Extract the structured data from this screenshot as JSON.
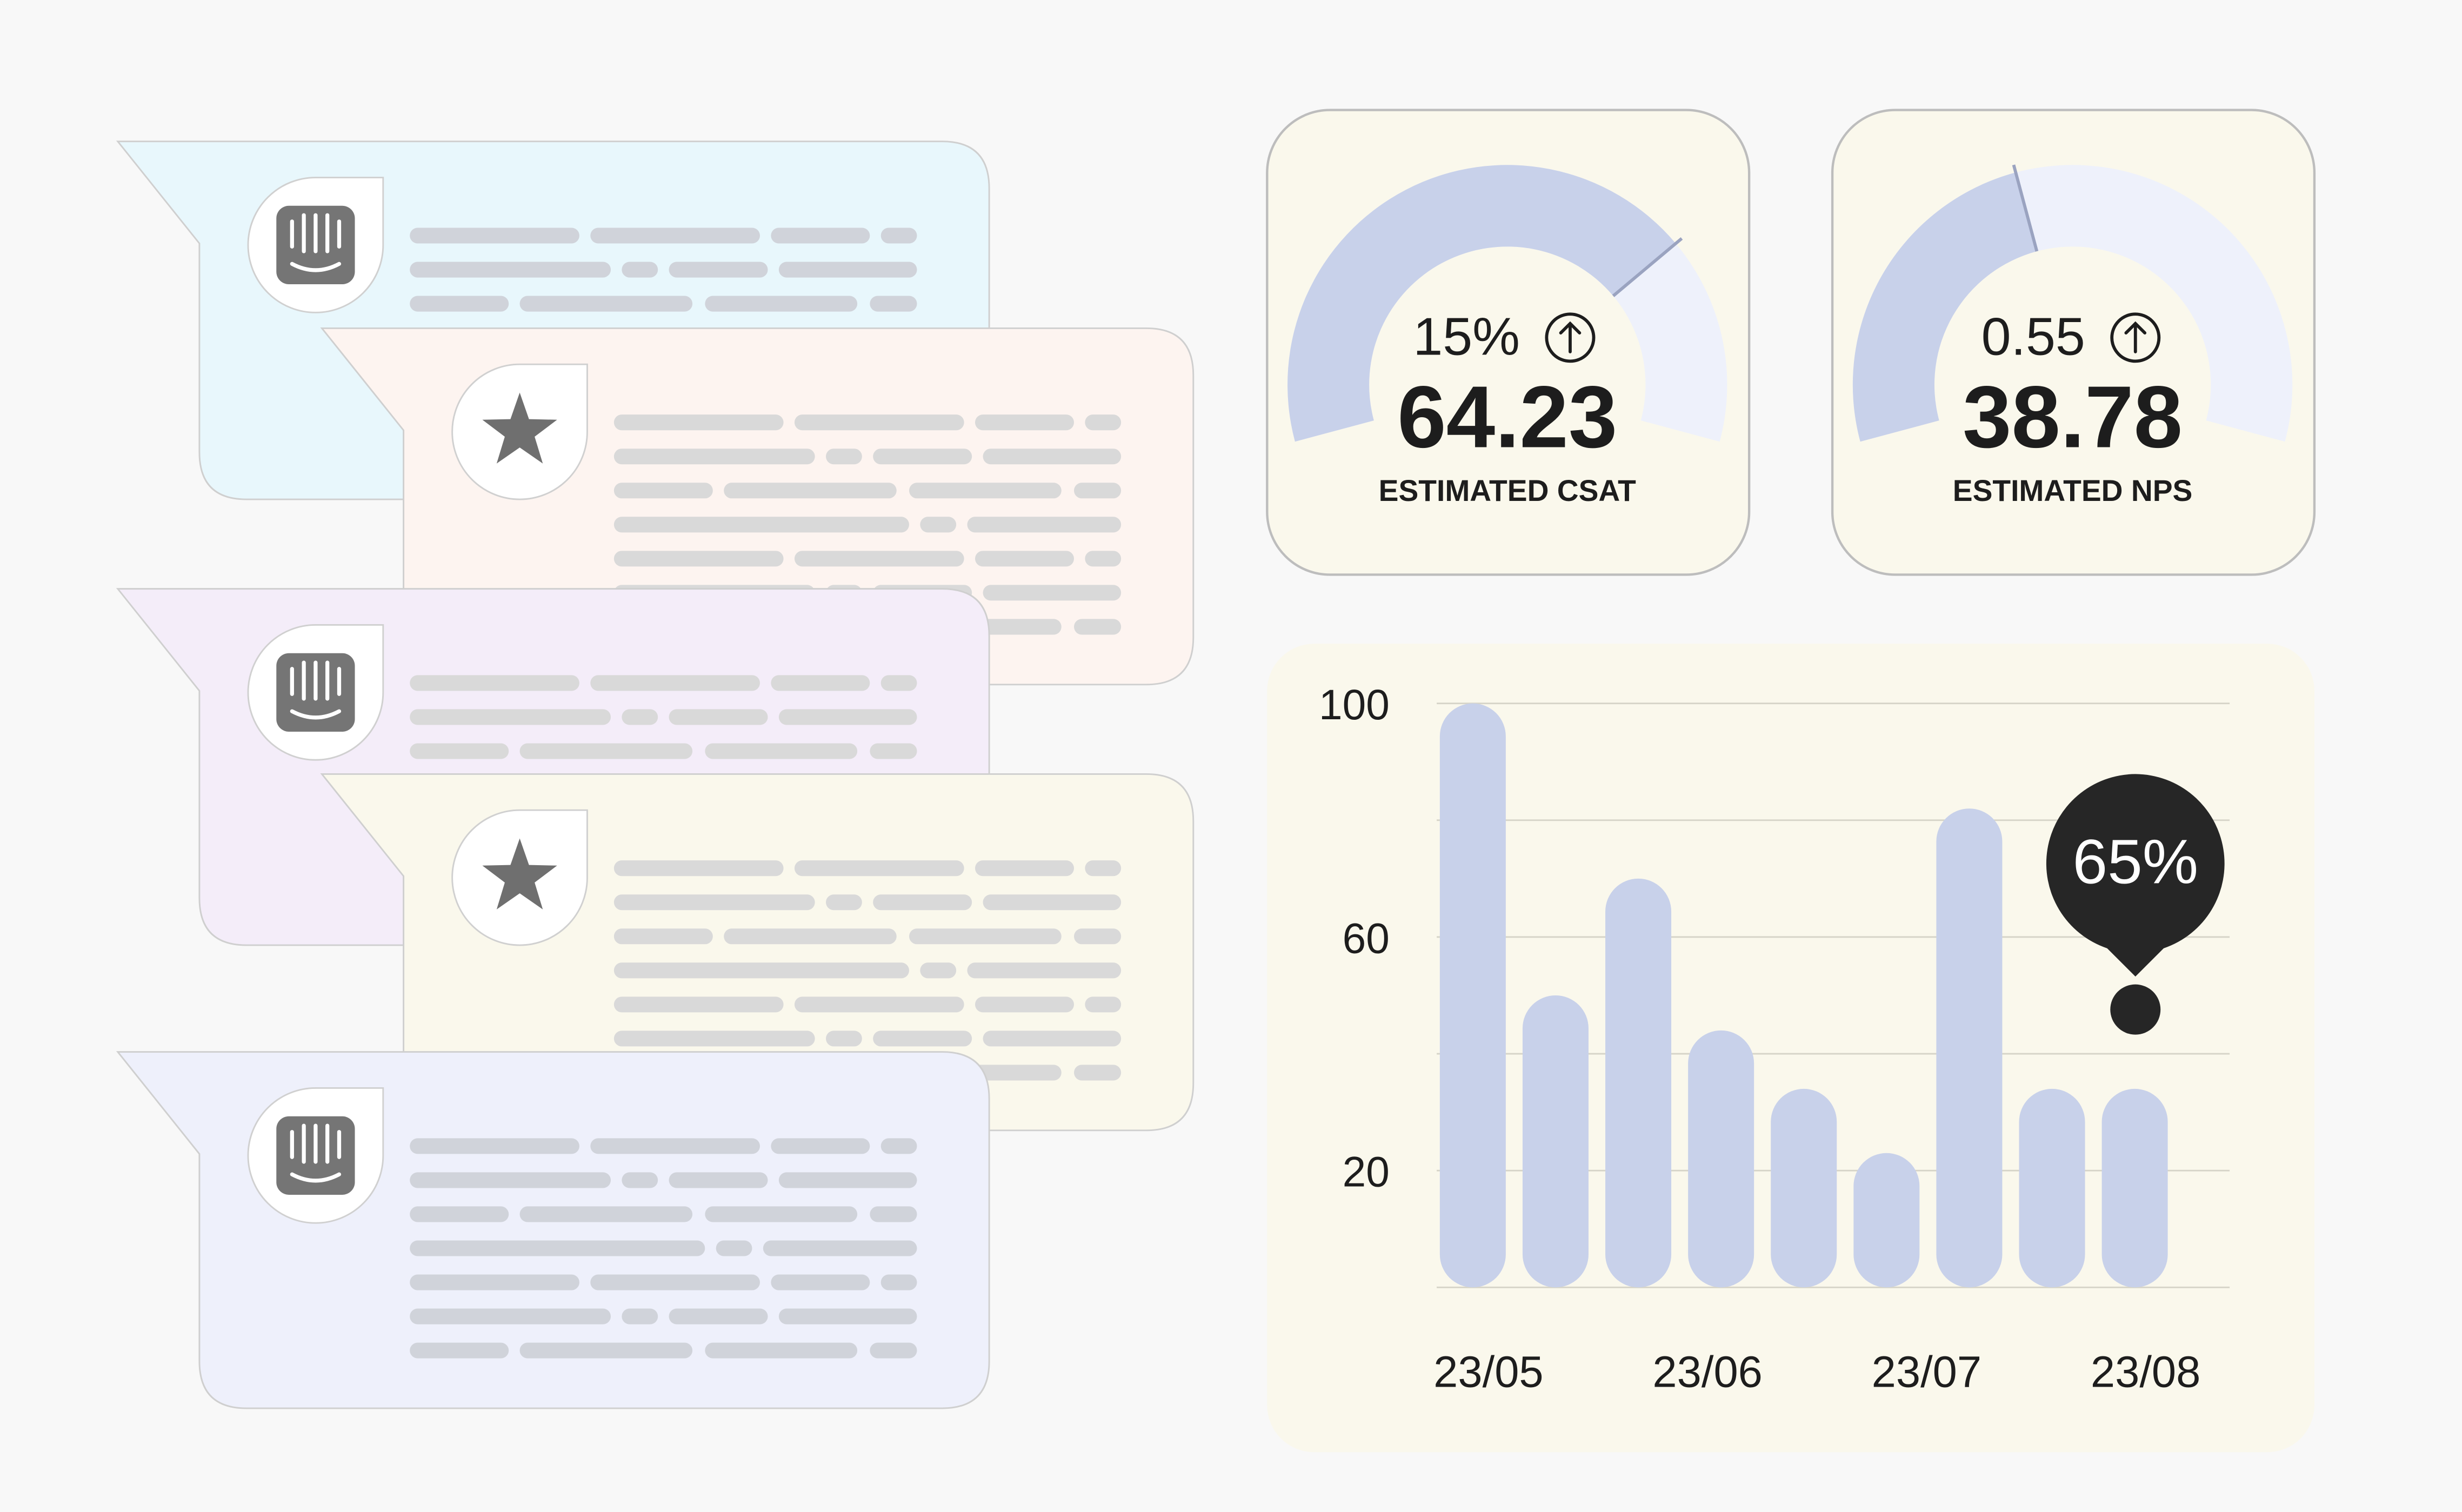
{
  "gauges": [
    {
      "change": "15%",
      "value": "64.23",
      "label": "ESTIMATED CSAT"
    },
    {
      "change": "0.55",
      "value": "38.78",
      "label": "ESTIMATED NPS"
    }
  ],
  "chart_data": {
    "type": "bar",
    "values": [
      100,
      50,
      70,
      44,
      34,
      23,
      82,
      34,
      34
    ],
    "color": "#c8d1ea",
    "ylim": [
      0,
      100
    ],
    "yticks": [
      20,
      60,
      100
    ],
    "gridlines": [
      0,
      20,
      40,
      60,
      80,
      100
    ],
    "x_labels": [
      "23/05",
      "23/06",
      "23/07",
      "23/08"
    ],
    "annotation": "65%"
  }
}
